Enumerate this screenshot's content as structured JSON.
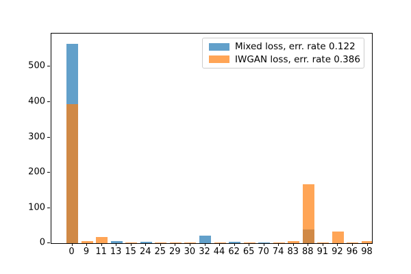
{
  "chart_data": {
    "type": "bar",
    "subtype": "overlapping-histogram",
    "title": "",
    "xlabel": "",
    "ylabel": "",
    "categories": [
      "0",
      "9",
      "11",
      "13",
      "15",
      "24",
      "25",
      "29",
      "30",
      "32",
      "44",
      "62",
      "65",
      "70",
      "74",
      "83",
      "88",
      "91",
      "92",
      "96",
      "98"
    ],
    "series": [
      {
        "name": "Mixed loss, err. rate 0.122",
        "color": "#1f77b4",
        "alpha": 0.7,
        "values": [
          565,
          0,
          0,
          6,
          0,
          4,
          0,
          0,
          0,
          22,
          0,
          4,
          0,
          3,
          0,
          0,
          39,
          0,
          0,
          0,
          0
        ]
      },
      {
        "name": "IWGAN loss, err. rate 0.386",
        "color": "#ff7f0e",
        "alpha": 0.7,
        "values": [
          394,
          5,
          17,
          0,
          2,
          0,
          2,
          2,
          2,
          0,
          2,
          0,
          2,
          0,
          2,
          5,
          168,
          3,
          33,
          2,
          5
        ]
      }
    ],
    "yticks": [
      0,
      100,
      200,
      300,
      400,
      500
    ],
    "ylim": [
      0,
      594
    ],
    "grid": false,
    "legend_position": "upper right",
    "axis_color": "#000000",
    "background_color": "#ffffff"
  }
}
